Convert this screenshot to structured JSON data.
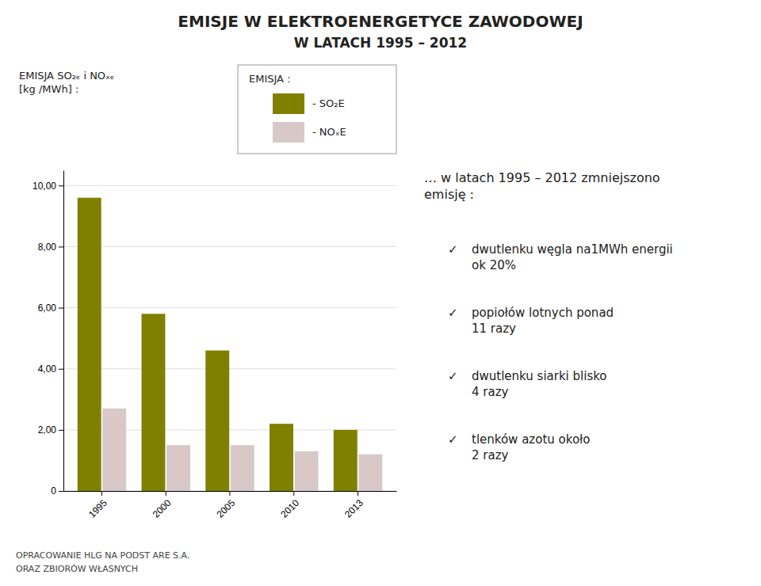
{
  "chart_data": {
    "type": "bar",
    "title": "EMISJE W ELEKTROENERGETYCE ZAWODOWEJ",
    "subtitle": "W LATACH 1995 – 2012",
    "ylabel": "EMISJA SO₂ₑ i NOₓₑ\n[kg /MWh] :",
    "categories": [
      "1995",
      "2000",
      "2005",
      "2010",
      "2013"
    ],
    "series": [
      {
        "name": "- SO₂E",
        "color": "#808000",
        "values": [
          9.6,
          5.8,
          4.6,
          2.2,
          2.0
        ]
      },
      {
        "name": "- NOₓE",
        "color": "#d8c8c8",
        "values": [
          2.7,
          1.5,
          1.5,
          1.3,
          1.2
        ]
      }
    ],
    "ylim": [
      0,
      10.5
    ],
    "yticks": [
      0,
      {
        "value": 2,
        "label": "2,00"
      },
      {
        "value": 4,
        "label": "4,00"
      },
      {
        "value": 6,
        "label": "6,00"
      },
      {
        "value": 8,
        "label": "8,00"
      },
      {
        "value": 10,
        "label": "10,00"
      }
    ],
    "grid": true,
    "legend": "upper right",
    "legend_title": "EMISJA :",
    "annotations": {
      "header": "… w latach 1995 – 2012 zmniejszono\nemisję :",
      "check": "✓",
      "bullets": [
        "dwutlenku węgla na1MWh energii\nok 20%",
        "popiołów lotnych  ponad\n11 razy",
        "dwutlenku siarki blisko\n4 razy",
        "tlenków azotu około\n2 razy"
      ]
    },
    "footer": [
      "OPRACOWANIE HLG NA PODST ARE S.A.",
      "ORAZ ZBIORÓW WŁASNYCH"
    ]
  }
}
